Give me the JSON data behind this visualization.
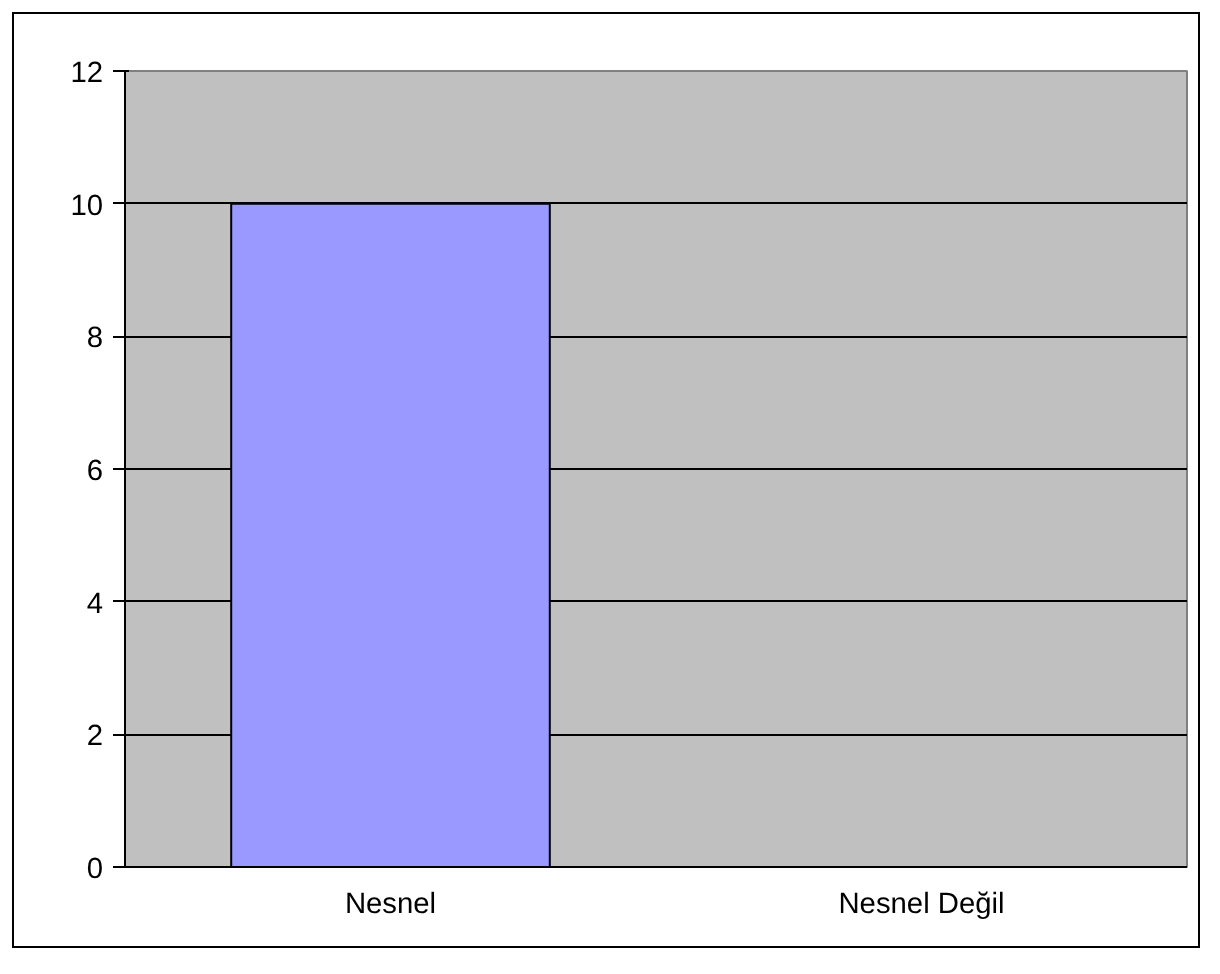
{
  "chart_data": {
    "type": "bar",
    "categories": [
      "Nesnel",
      "Nesnel Değil"
    ],
    "values": [
      10,
      0
    ],
    "color": "#9999ff",
    "ylim": [
      0,
      12
    ],
    "yticks": [
      0,
      2,
      4,
      6,
      8,
      10,
      12
    ],
    "grid": "y"
  }
}
